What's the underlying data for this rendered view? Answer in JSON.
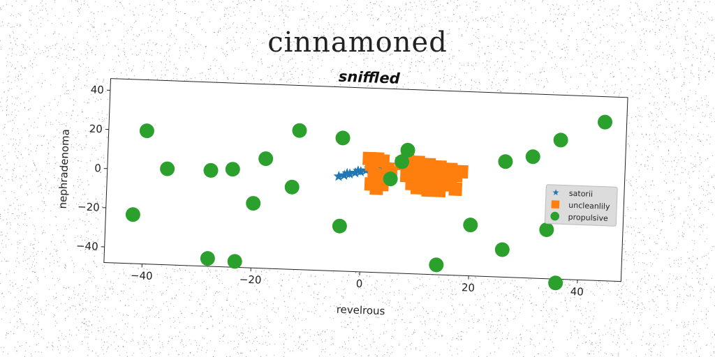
{
  "figure": {
    "suptitle": "cinnamoned"
  },
  "chart_data": {
    "type": "scatter",
    "title": "sniffled",
    "xlabel": "revelrous",
    "ylabel": "nephradenoma",
    "xlim": [
      -47,
      48
    ],
    "ylim": [
      -48,
      46
    ],
    "xticks": [
      -40,
      -20,
      0,
      20,
      40
    ],
    "yticks": [
      -40,
      -20,
      0,
      20,
      40
    ],
    "xticklabels": [
      "−40",
      "−20",
      "0",
      "20",
      "40"
    ],
    "yticklabels": [
      "−40",
      "−20",
      "0",
      "20",
      "40"
    ],
    "grid": false,
    "legend_position": "center-right",
    "series": [
      {
        "name": "satorii",
        "marker": "star",
        "color": "#1f77b4",
        "x": [
          -4.5,
          -3.5,
          -2.5,
          -1.5,
          -0.5,
          0.5,
          1.5,
          2.5,
          3.5,
          4.5,
          -3,
          -1,
          1,
          3
        ],
        "y": [
          0.3,
          1.0,
          1.8,
          2.5,
          3.2,
          3.9,
          4.7,
          5.4,
          6.1,
          6.8,
          2.0,
          3.5,
          5.0,
          7.2
        ]
      },
      {
        "name": "uncleanlily",
        "marker": "square",
        "color": "#ff7f0e",
        "x": [
          1,
          1.5,
          2.5,
          3.5,
          4.5,
          2,
          3,
          4,
          5,
          1.5,
          2.5,
          3.5,
          7,
          8,
          9,
          10,
          11,
          12,
          13,
          14,
          15,
          16,
          17,
          18,
          8,
          10,
          12,
          14,
          16,
          9,
          11,
          13,
          15,
          17,
          10,
          12,
          14
        ],
        "y": [
          10,
          7,
          10,
          9,
          5,
          2,
          -1,
          1,
          3,
          -3,
          -5,
          -3,
          8,
          10,
          7,
          9,
          6,
          8,
          4,
          7,
          5,
          6,
          3,
          5,
          2,
          1,
          3,
          0,
          1,
          -2,
          -1,
          -3,
          -2,
          -4,
          -4,
          -5,
          -5
        ]
      },
      {
        "name": "propulsive",
        "marker": "circle",
        "color": "#2ca02c",
        "x": [
          44,
          36,
          -40,
          -36,
          -28,
          -24,
          -18,
          -20,
          -13,
          -12,
          -4,
          -4,
          5,
          7,
          8,
          20,
          26,
          31,
          34,
          26,
          14,
          36,
          -42,
          -28,
          -23
        ],
        "y": [
          33,
          23,
          20,
          1,
          1,
          2,
          8,
          -15,
          -6,
          23,
          20,
          -25,
          0,
          9,
          15,
          -22,
          11,
          14,
          -23,
          -34,
          -43,
          -50,
          -23,
          -44,
          -45
        ]
      }
    ]
  }
}
